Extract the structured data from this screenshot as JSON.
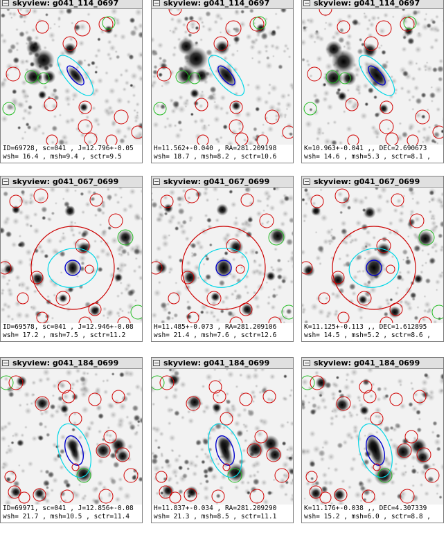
{
  "colors": {
    "source_ring": "#d00000",
    "green_ring": "#22bb22",
    "aperture_outer": "#cc0000",
    "aperture_cyan": "#00d6e6",
    "aperture_blue": "#0000cc"
  },
  "windows": [
    {
      "title": "skyview: g041_114_0697",
      "info_line1": "ID=69728, sc=041 , J=12.796+-0.05",
      "info_line2": "wsh= 16.4 , msh=9.4 , sctr=9.5"
    },
    {
      "title": "skyview: g041_114_0697",
      "info_line1": "H=11.562+-0.040 , RA=281.209198",
      "info_line2": "wsh= 18.7 , msh=8.2 , sctr=10.6"
    },
    {
      "title": "skyview: g041_114_0697",
      "info_line1": "K=10.963+-0.041 ,, DEC=2.690673",
      "info_line2": "wsh= 14.6 , msh=5.3 , sctr=8.1 ,"
    },
    {
      "title": "skyview: g041_067_0699",
      "info_line1": "ID=69578, sc=041 , J=12.946+-0.08",
      "info_line2": "wsh= 17.2 , msh=7.5 , sctr=11.2"
    },
    {
      "title": "skyview: g041_067_0699",
      "info_line1": "H=11.485+-0.073 , RA=281.209106",
      "info_line2": "wsh= 21.4 , msh=7.6 , sctr=12.6"
    },
    {
      "title": "skyview: g041_067_0699",
      "info_line1": "K=11.125+-0.113 ,, DEC=1.612895",
      "info_line2": "wsh= 14.5 , msh=5.2 , sctr=8.6 ,"
    },
    {
      "title": "skyview: g041_184_0699",
      "info_line1": "ID=69971, sc=041 , J=12.856+-0.08",
      "info_line2": "wsh= 21.7 , msh=10.5 , sctr=11.4"
    },
    {
      "title": "skyview: g041_184_0699",
      "info_line1": "H=11.837+-0.034 , RA=281.209290",
      "info_line2": "wsh= 21.3 , msh=8.5 , sctr=11.1"
    },
    {
      "title": "skyview: g041_184_0699",
      "info_line1": "K=11.176+-0.038 ,, DEC=4.307339",
      "info_line2": "wsh= 15.2 , msh=6.0 , sctr=8.8 ,"
    }
  ]
}
